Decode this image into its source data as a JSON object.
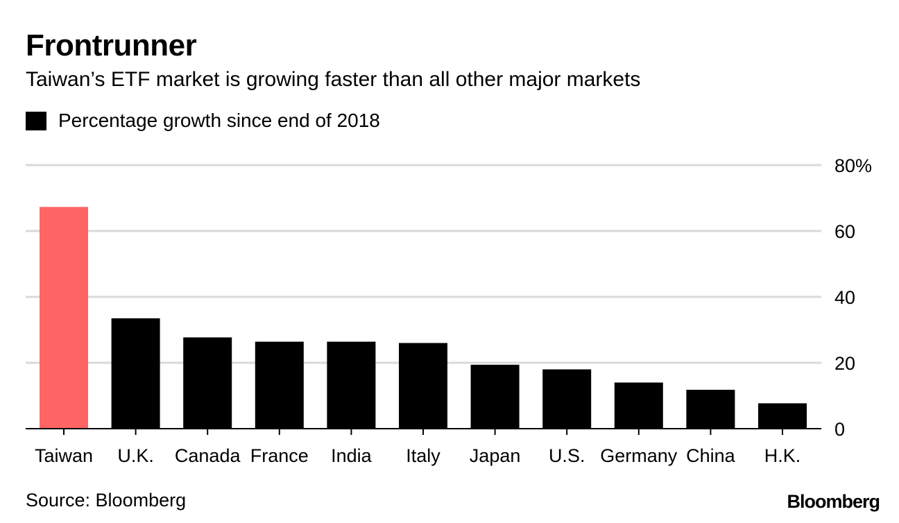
{
  "title": "Frontrunner",
  "subtitle": "Taiwan’s ETF market is growing faster than all other major markets",
  "legend": {
    "label": "Percentage growth since end of 2018",
    "color": "#000000"
  },
  "source": "Source: Bloomberg",
  "brand": "Bloomberg",
  "colors": {
    "highlight": "#ff6464",
    "bar": "#000000",
    "grid": "#d9d9d9",
    "axis": "#000000"
  },
  "chart_data": {
    "type": "bar",
    "categories": [
      "Taiwan",
      "U.K.",
      "Canada",
      "France",
      "India",
      "Italy",
      "Japan",
      "U.S.",
      "Germany",
      "China",
      "H.K."
    ],
    "series": [
      {
        "name": "Percentage growth since end of 2018",
        "values": [
          67.3,
          33.5,
          27.7,
          26.4,
          26.4,
          26.0,
          19.4,
          18.0,
          14.0,
          11.8,
          7.7
        ]
      }
    ],
    "highlight_index": 0,
    "ylim": [
      0,
      80
    ],
    "yticks": [
      0,
      20,
      40,
      60,
      80
    ],
    "ytick_labels": [
      "0",
      "20",
      "40",
      "60",
      "80%"
    ],
    "yaxis_side": "right",
    "grid": true,
    "legend_position": "top-left"
  }
}
